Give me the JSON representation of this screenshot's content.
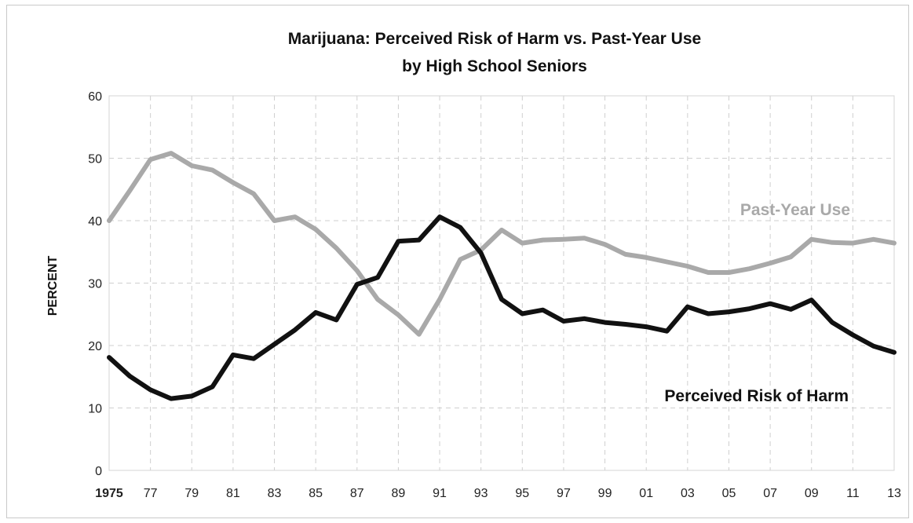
{
  "chart_data": {
    "type": "line",
    "title": "Marijuana: Perceived Risk of Harm vs. Past-Year Use",
    "subtitle": "by High School Seniors",
    "xlabel": "",
    "ylabel": "PERCENT",
    "ylim": [
      0,
      60
    ],
    "yticks": [
      "0",
      "10",
      "20",
      "30",
      "40",
      "50",
      "60"
    ],
    "xlim": [
      1975,
      2013
    ],
    "xticks": [
      {
        "year": 1975,
        "label": "1975"
      },
      {
        "year": 1977,
        "label": "77"
      },
      {
        "year": 1979,
        "label": "79"
      },
      {
        "year": 1981,
        "label": "81"
      },
      {
        "year": 1983,
        "label": "83"
      },
      {
        "year": 1985,
        "label": "85"
      },
      {
        "year": 1987,
        "label": "87"
      },
      {
        "year": 1989,
        "label": "89"
      },
      {
        "year": 1991,
        "label": "91"
      },
      {
        "year": 1993,
        "label": "93"
      },
      {
        "year": 1995,
        "label": "95"
      },
      {
        "year": 1997,
        "label": "97"
      },
      {
        "year": 1999,
        "label": "99"
      },
      {
        "year": 2001,
        "label": "01"
      },
      {
        "year": 2003,
        "label": "03"
      },
      {
        "year": 2005,
        "label": "05"
      },
      {
        "year": 2007,
        "label": "07"
      },
      {
        "year": 2009,
        "label": "09"
      },
      {
        "year": 2011,
        "label": "11"
      },
      {
        "year": 2013,
        "label": "13"
      }
    ],
    "grid": true,
    "x": [
      1975,
      1976,
      1977,
      1978,
      1979,
      1980,
      1981,
      1982,
      1983,
      1984,
      1985,
      1986,
      1987,
      1988,
      1989,
      1990,
      1991,
      1992,
      1993,
      1994,
      1995,
      1996,
      1997,
      1998,
      1999,
      2000,
      2001,
      2002,
      2003,
      2004,
      2005,
      2006,
      2007,
      2008,
      2009,
      2010,
      2011,
      2012,
      2013
    ],
    "series": [
      {
        "name": "Past-Year Use",
        "color": "#a9a9a9",
        "values": [
          40.0,
          44.8,
          49.8,
          50.8,
          48.8,
          48.1,
          46.1,
          44.3,
          40.0,
          40.6,
          38.6,
          35.6,
          32.0,
          27.4,
          24.9,
          21.8,
          27.4,
          33.8,
          35.3,
          38.5,
          36.4,
          36.9,
          37.0,
          37.2,
          36.2,
          34.6,
          34.1,
          33.4,
          32.7,
          31.7,
          31.7,
          32.3,
          33.2,
          34.2,
          37.0,
          36.5,
          36.4,
          37.0,
          36.4
        ]
      },
      {
        "name": "Perceived Risk of Harm",
        "color": "#111111",
        "values": [
          18.1,
          15.1,
          12.9,
          11.5,
          11.9,
          13.4,
          18.5,
          17.9,
          20.2,
          22.5,
          25.3,
          24.1,
          29.8,
          30.9,
          36.7,
          36.9,
          40.6,
          38.9,
          34.8,
          27.4,
          25.1,
          25.7,
          23.9,
          24.3,
          23.7,
          23.4,
          23.0,
          22.3,
          26.2,
          25.1,
          25.4,
          25.9,
          26.7,
          25.8,
          27.3,
          23.7,
          21.7,
          19.9,
          18.9
        ]
      }
    ],
    "annotations": [
      {
        "text": "Past-Year Use",
        "series": "Past-Year Use",
        "color": "#a9a9a9"
      },
      {
        "text": "Perceived Risk of Harm",
        "series": "Perceived Risk of Harm",
        "color": "#111111"
      }
    ]
  }
}
